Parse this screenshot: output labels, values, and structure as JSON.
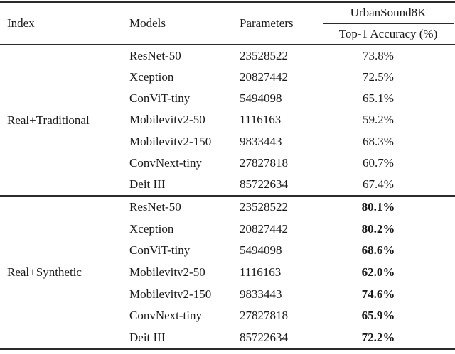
{
  "table": {
    "headers": {
      "index": "Index",
      "models": "Models",
      "parameters": "Parameters",
      "dataset": "UrbanSound8K",
      "metric": "Top-1 Accuracy (%)"
    },
    "groups": [
      {
        "index_label": "Real+Traditional",
        "bold_accuracy": false,
        "rows": [
          {
            "model": "ResNet-50",
            "parameters": "23528522",
            "accuracy": "73.8%"
          },
          {
            "model": "Xception",
            "parameters": "20827442",
            "accuracy": "72.5%"
          },
          {
            "model": "ConViT-tiny",
            "parameters": "5494098",
            "accuracy": "65.1%"
          },
          {
            "model": "Mobilevitv2-50",
            "parameters": "1116163",
            "accuracy": "59.2%"
          },
          {
            "model": "Mobilevitv2-150",
            "parameters": "9833443",
            "accuracy": "68.3%"
          },
          {
            "model": "ConvNext-tiny",
            "parameters": "27827818",
            "accuracy": "60.7%"
          },
          {
            "model": "Deit III",
            "parameters": "85722634",
            "accuracy": "67.4%"
          }
        ]
      },
      {
        "index_label": "Real+Synthetic",
        "bold_accuracy": true,
        "rows": [
          {
            "model": "ResNet-50",
            "parameters": "23528522",
            "accuracy": "80.1%"
          },
          {
            "model": "Xception",
            "parameters": "20827442",
            "accuracy": "80.2%"
          },
          {
            "model": "ConViT-tiny",
            "parameters": "5494098",
            "accuracy": "68.6%"
          },
          {
            "model": "Mobilevitv2-50",
            "parameters": "1116163",
            "accuracy": "62.0%"
          },
          {
            "model": "Mobilevitv2-150",
            "parameters": "9833443",
            "accuracy": "74.6%"
          },
          {
            "model": "ConvNext-tiny",
            "parameters": "27827818",
            "accuracy": "65.9%"
          },
          {
            "model": "Deit III",
            "parameters": "85722634",
            "accuracy": "72.2%"
          }
        ]
      }
    ],
    "colors": {
      "text": "#1a1a1a",
      "rule": "#2b2b2b",
      "background": "#ffffff"
    }
  }
}
